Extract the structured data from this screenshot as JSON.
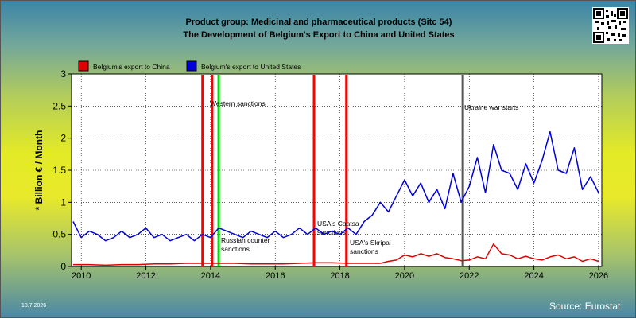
{
  "title_line1": "Product group: Medicinal and pharmaceutical products (Sitc 54)",
  "title_line2": "The Development of Belgium's Export to  China and United States",
  "date_stamp": "18.7.2026",
  "source": "Source: Eurostat",
  "colors": {
    "china": "#e00000",
    "us": "#0000d8",
    "event_red": "#ff0000",
    "event_green": "#00e000",
    "event_gray": "#555555"
  },
  "chart_data": {
    "type": "line",
    "ylabel": "* Billion € / Month",
    "xlabel": "",
    "ylim": [
      0,
      3
    ],
    "xlim": [
      2009.7,
      2026.1
    ],
    "yticks": [
      "0",
      "0.5",
      "1",
      "1.5",
      "2",
      "2.5",
      "3"
    ],
    "xticks": [
      "2010",
      "2012",
      "2014",
      "2016",
      "2018",
      "2020",
      "2022",
      "2024",
      "2026"
    ],
    "grid": true,
    "legend_position": "top-left",
    "series": [
      {
        "name": "Belgium's export to China",
        "color": "#e00000",
        "x": [
          2009.75,
          2010.25,
          2010.75,
          2011.25,
          2011.75,
          2012.25,
          2012.75,
          2013.25,
          2013.75,
          2014.25,
          2014.75,
          2015.25,
          2015.75,
          2016.25,
          2016.75,
          2017.25,
          2017.75,
          2018.25,
          2018.75,
          2019.25,
          2019.5,
          2019.75,
          2020.0,
          2020.25,
          2020.5,
          2020.75,
          2021.0,
          2021.25,
          2021.5,
          2021.75,
          2022.0,
          2022.25,
          2022.5,
          2022.75,
          2023.0,
          2023.25,
          2023.5,
          2023.75,
          2024.0,
          2024.25,
          2024.5,
          2024.75,
          2025.0,
          2025.25,
          2025.5,
          2025.75,
          2026.0
        ],
        "y": [
          0.03,
          0.03,
          0.02,
          0.03,
          0.03,
          0.04,
          0.04,
          0.05,
          0.05,
          0.05,
          0.05,
          0.04,
          0.04,
          0.04,
          0.05,
          0.06,
          0.06,
          0.05,
          0.05,
          0.05,
          0.08,
          0.1,
          0.18,
          0.15,
          0.2,
          0.16,
          0.2,
          0.14,
          0.12,
          0.09,
          0.1,
          0.15,
          0.12,
          0.35,
          0.2,
          0.18,
          0.12,
          0.16,
          0.12,
          0.1,
          0.15,
          0.18,
          0.12,
          0.15,
          0.08,
          0.12,
          0.08
        ]
      },
      {
        "name": "Belgium's export to United States",
        "color": "#0000d8",
        "x": [
          2009.75,
          2010.0,
          2010.25,
          2010.5,
          2010.75,
          2011.0,
          2011.25,
          2011.5,
          2011.75,
          2012.0,
          2012.25,
          2012.5,
          2012.75,
          2013.0,
          2013.25,
          2013.5,
          2013.75,
          2014.0,
          2014.25,
          2014.5,
          2014.75,
          2015.0,
          2015.25,
          2015.5,
          2015.75,
          2016.0,
          2016.25,
          2016.5,
          2016.75,
          2017.0,
          2017.25,
          2017.5,
          2017.75,
          2018.0,
          2018.25,
          2018.5,
          2018.75,
          2019.0,
          2019.25,
          2019.5,
          2019.75,
          2020.0,
          2020.25,
          2020.5,
          2020.75,
          2021.0,
          2021.25,
          2021.5,
          2021.75,
          2022.0,
          2022.25,
          2022.5,
          2022.75,
          2023.0,
          2023.25,
          2023.5,
          2023.75,
          2024.0,
          2024.25,
          2024.5,
          2024.75,
          2025.0,
          2025.25,
          2025.5,
          2025.75,
          2026.0
        ],
        "y": [
          0.7,
          0.45,
          0.55,
          0.5,
          0.4,
          0.45,
          0.55,
          0.45,
          0.5,
          0.6,
          0.45,
          0.5,
          0.4,
          0.45,
          0.5,
          0.4,
          0.5,
          0.45,
          0.6,
          0.55,
          0.5,
          0.45,
          0.55,
          0.5,
          0.45,
          0.55,
          0.45,
          0.5,
          0.6,
          0.5,
          0.6,
          0.5,
          0.55,
          0.5,
          0.6,
          0.5,
          0.7,
          0.8,
          1.0,
          0.85,
          1.1,
          1.35,
          1.1,
          1.3,
          1.0,
          1.2,
          0.9,
          1.45,
          1.0,
          1.25,
          1.7,
          1.15,
          1.9,
          1.5,
          1.45,
          1.2,
          1.6,
          1.3,
          1.65,
          2.1,
          1.5,
          1.45,
          1.85,
          1.2,
          1.4,
          1.15
        ]
      }
    ],
    "events": [
      {
        "x": 2013.75,
        "label": "",
        "color": "#ff0000"
      },
      {
        "x": 2014.05,
        "label": "Western sanctions",
        "color": "#ff0000"
      },
      {
        "x": 2014.25,
        "label": "Russian counter sanctions",
        "color": "#00e000"
      },
      {
        "x": 2017.2,
        "label": "USA's Caatsa sanctions",
        "color": "#ff0000"
      },
      {
        "x": 2018.2,
        "label": "USA's Skripal sanctions",
        "color": "#ff0000"
      },
      {
        "x": 2021.8,
        "label": "Ukraine war starts",
        "color": "#555555"
      }
    ]
  }
}
